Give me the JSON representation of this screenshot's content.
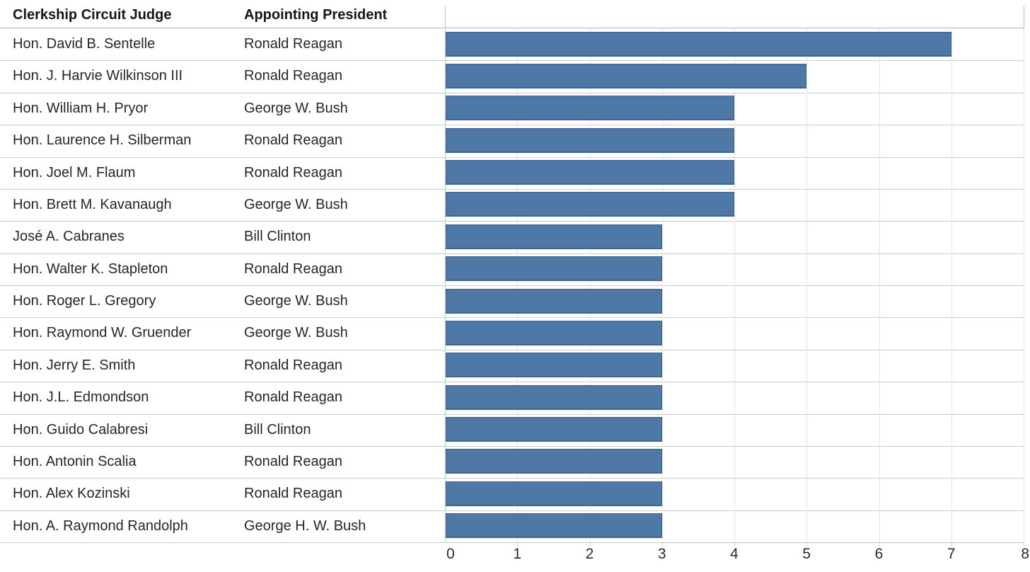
{
  "table": {
    "columns": [
      {
        "label": "Clerkship Circuit Judge"
      },
      {
        "label": "Appointing President"
      }
    ]
  },
  "chart_data": {
    "type": "bar",
    "orientation": "horizontal",
    "title": "",
    "xlabel": "",
    "ylabel": "",
    "xlim": [
      0,
      8
    ],
    "x_ticks": [
      0,
      1,
      2,
      3,
      4,
      5,
      6,
      7,
      8
    ],
    "grid": "vertical",
    "legend": "none",
    "bar_color": "#4e79a7",
    "categories": [
      "Hon. David B. Sentelle",
      "Hon. J. Harvie Wilkinson III",
      "Hon. William H. Pryor",
      "Hon. Laurence H. Silberman",
      "Hon. Joel M. Flaum",
      "Hon. Brett M. Kavanaugh",
      "José A. Cabranes",
      "Hon. Walter K. Stapleton",
      "Hon. Roger L. Gregory",
      "Hon. Raymond W. Gruender",
      "Hon. Jerry E. Smith",
      "Hon. J.L. Edmondson",
      "Hon. Guido Calabresi",
      "Hon. Antonin Scalia",
      "Hon. Alex Kozinski",
      "Hon. A. Raymond Randolph"
    ],
    "presidents": [
      "Ronald Reagan",
      "Ronald Reagan",
      "George W. Bush",
      "Ronald Reagan",
      "Ronald Reagan",
      "George W. Bush",
      "Bill Clinton",
      "Ronald Reagan",
      "George W. Bush",
      "George W. Bush",
      "Ronald Reagan",
      "Ronald Reagan",
      "Bill Clinton",
      "Ronald Reagan",
      "Ronald Reagan",
      "George H. W. Bush"
    ],
    "values": [
      7,
      5,
      4,
      4,
      4,
      4,
      3,
      3,
      3,
      3,
      3,
      3,
      3,
      3,
      3,
      3
    ]
  },
  "colors": {
    "bar": "#4e79a7",
    "gridline": "#e5e5e5",
    "row_divider": "#cbcbcb",
    "axis_line": "#c2c2c2",
    "text": "#262626"
  }
}
